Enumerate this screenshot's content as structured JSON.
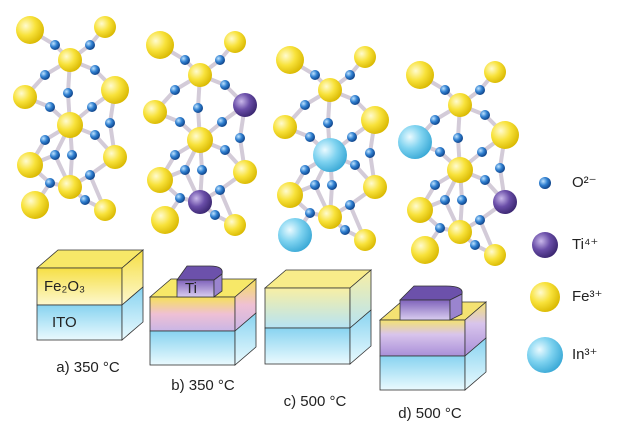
{
  "legend": [
    {
      "label": "O²⁻"
    },
    {
      "label": "Ti⁴⁺"
    },
    {
      "label": "Fe³⁺"
    },
    {
      "label": "In³⁺"
    }
  ],
  "blocks": [
    {
      "caption": "a) 350 °C",
      "top_layer": "Fe₂O₃",
      "bottom_layer": "ITO"
    },
    {
      "caption": "b) 350 °C",
      "cap": "Ti"
    },
    {
      "caption": "c) 500 °C"
    },
    {
      "caption": "d) 500 °C"
    }
  ]
}
